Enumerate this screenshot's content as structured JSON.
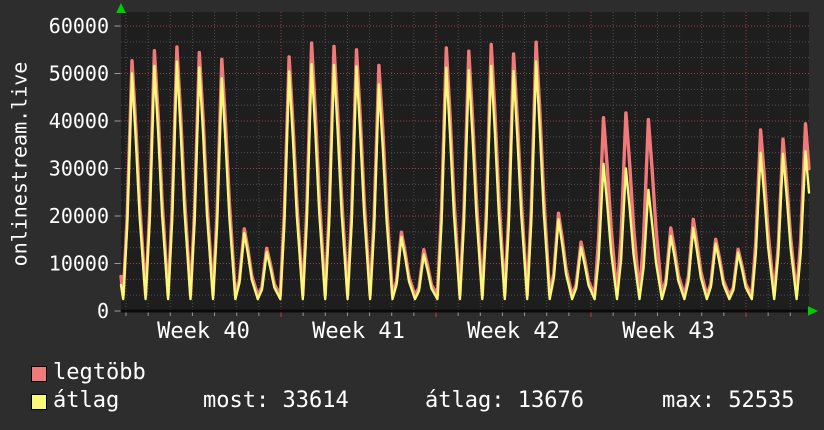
{
  "page": {
    "background": "#2d2d2d",
    "plot_background": "#1e1e1e",
    "text_color": "#ffffff"
  },
  "legend": {
    "items": [
      {
        "label": "legtöbb",
        "color": "#f07a7a"
      },
      {
        "label": "átlag",
        "color": "#f8f879"
      }
    ]
  },
  "stats_row": [
    {
      "name": "most",
      "value": 33614,
      "text": "most: 33614"
    },
    {
      "name": "átlag",
      "value": 13676,
      "text": "átlag: 13676"
    },
    {
      "name": "max",
      "value": 52535,
      "text": "max: 52535"
    }
  ],
  "chart_data": {
    "type": "line",
    "title": "onlinestream.live",
    "xlabel": "",
    "ylabel": "",
    "ylim": [
      0,
      63000
    ],
    "y_ticks": [
      0,
      10000,
      20000,
      30000,
      40000,
      50000,
      60000
    ],
    "x_week_labels": [
      "Week 40",
      "Week 41",
      "Week 42",
      "Week 43"
    ],
    "days_per_week": 7,
    "num_days": 31,
    "grid": {
      "major_color": "#9b4444",
      "minor_color": "#4f4f4f",
      "style": "dotted"
    },
    "axis_arrow_color": "#00cc00",
    "series": [
      {
        "name": "legtöbb",
        "color": "#f07a7a",
        "daily_peak": [
          52700,
          54800,
          55600,
          54400,
          53000,
          17300,
          13200,
          53500,
          56400,
          55700,
          55000,
          51700,
          16600,
          12900,
          55400,
          54700,
          56100,
          54100,
          56600,
          20600,
          14500,
          40700,
          41700,
          40300,
          17500,
          19300,
          15100,
          13000,
          38100,
          36200,
          39400
        ],
        "valley_typical": 3300
      },
      {
        "name": "átlag",
        "color": "#f8f879",
        "daily_peak": [
          50000,
          51600,
          52500,
          51300,
          49000,
          16400,
          12400,
          50400,
          52000,
          51800,
          51500,
          47700,
          15600,
          11900,
          51200,
          50700,
          51600,
          50500,
          52535,
          19300,
          13400,
          31000,
          30000,
          25500,
          15800,
          17500,
          14200,
          12300,
          33300,
          33100,
          33614
        ],
        "valley_typical": 2500
      }
    ],
    "stats": {
      "most": 33614,
      "atlag": 13676,
      "max": 52535
    }
  }
}
